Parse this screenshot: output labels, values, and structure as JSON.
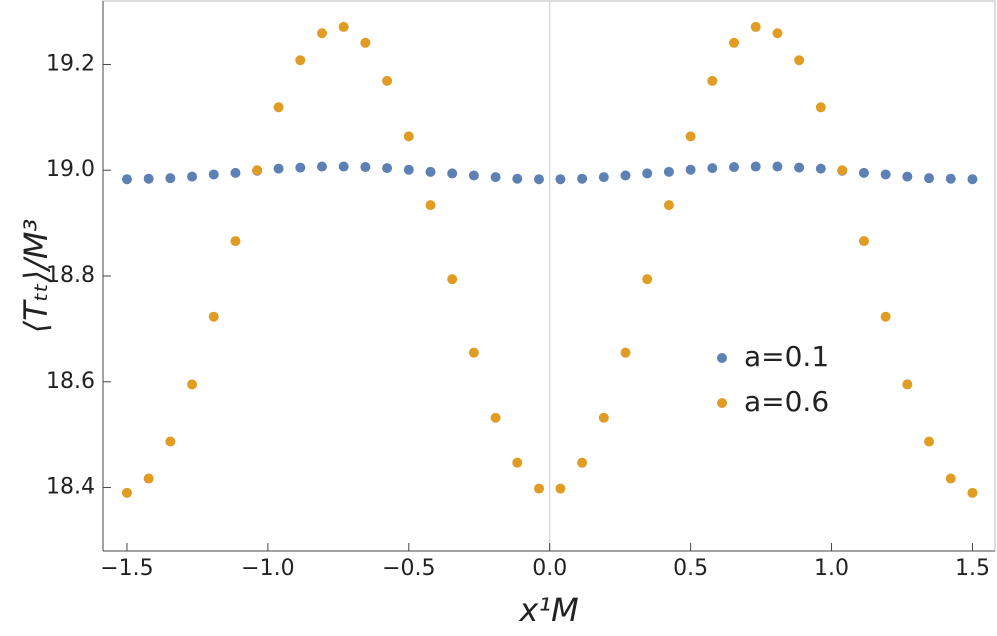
{
  "chart_data": {
    "type": "scatter",
    "xlabel": "x¹M",
    "ylabel": "⟨Tₜₜ⟩/M³",
    "x": [
      -1.5,
      -1.423,
      -1.346,
      -1.269,
      -1.192,
      -1.115,
      -1.038,
      -0.962,
      -0.885,
      -0.808,
      -0.731,
      -0.654,
      -0.577,
      -0.5,
      -0.423,
      -0.346,
      -0.269,
      -0.192,
      -0.115,
      -0.038,
      0.038,
      0.115,
      0.192,
      0.269,
      0.346,
      0.423,
      0.5,
      0.577,
      0.654,
      0.731,
      0.808,
      0.885,
      0.962,
      1.038,
      1.115,
      1.192,
      1.269,
      1.346,
      1.423,
      1.5
    ],
    "series": [
      {
        "name": "a=0.1",
        "color": "#5e81b5",
        "values": [
          18.983,
          18.984,
          18.985,
          18.988,
          18.992,
          18.995,
          18.999,
          19.003,
          19.005,
          19.007,
          19.007,
          19.006,
          19.004,
          19.001,
          18.997,
          18.994,
          18.99,
          18.987,
          18.984,
          18.983,
          18.983,
          18.984,
          18.987,
          18.99,
          18.994,
          18.997,
          19.001,
          19.004,
          19.006,
          19.007,
          19.007,
          19.005,
          19.003,
          18.999,
          18.995,
          18.992,
          18.988,
          18.985,
          18.984,
          18.983
        ]
      },
      {
        "name": "a=0.6",
        "color": "#e19c24",
        "values": [
          18.39,
          18.417,
          18.487,
          18.595,
          18.723,
          18.866,
          19.0,
          19.119,
          19.208,
          19.259,
          19.271,
          19.241,
          19.169,
          19.064,
          18.934,
          18.794,
          18.655,
          18.532,
          18.447,
          18.398,
          18.398,
          18.447,
          18.532,
          18.655,
          18.794,
          18.934,
          19.064,
          19.169,
          19.241,
          19.271,
          19.259,
          19.208,
          19.119,
          19.0,
          18.866,
          18.723,
          18.595,
          18.487,
          18.417,
          18.39
        ]
      }
    ],
    "xlim": [
      -1.585,
      1.58
    ],
    "ylim": [
      18.28,
      19.32
    ],
    "xticks": [
      {
        "value": -1.5,
        "label": "−1.5"
      },
      {
        "value": -1.0,
        "label": "−1.0"
      },
      {
        "value": -0.5,
        "label": "−0.5"
      },
      {
        "value": 0.0,
        "label": "0.0"
      },
      {
        "value": 0.5,
        "label": "0.5"
      },
      {
        "value": 1.0,
        "label": "1.0"
      },
      {
        "value": 1.5,
        "label": "1.5"
      }
    ],
    "yticks": [
      18.4,
      18.6,
      18.8,
      {
        "value": 19.0,
        "label": "19.0"
      },
      19.2
    ],
    "legend": "center-right"
  }
}
